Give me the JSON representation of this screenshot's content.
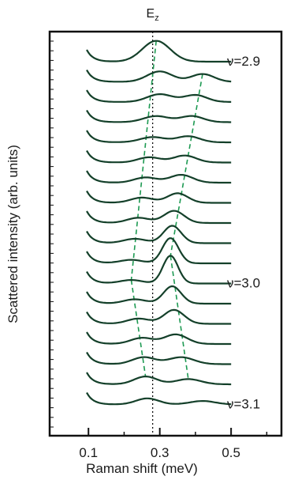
{
  "chart_data": {
    "type": "line",
    "title": "",
    "xlabel": "Raman shift (meV)",
    "ylabel": "Scattered intensity (arb. units)",
    "xlim": [
      0.0,
      0.65
    ],
    "xticks": [
      0.1,
      0.3,
      0.5
    ],
    "xtick_labels": [
      "0.1",
      "0.3",
      "0.5"
    ],
    "grid": false,
    "reference_line": {
      "label": "E",
      "subscript": "z",
      "x": 0.28,
      "style": "dotted"
    },
    "annotations": [
      {
        "text": "ν=2.9",
        "near_trace": 0
      },
      {
        "text": "ν=3.0",
        "near_trace": 11
      },
      {
        "text": "ν=3.1",
        "near_trace": 17
      }
    ],
    "series_color": "#14402a",
    "guide_color": "#1d9a52",
    "traces": [
      {
        "peaks": [
          {
            "x": 0.29,
            "h": 1.2,
            "w": 0.055
          }
        ]
      },
      {
        "peaks": [
          {
            "x": 0.3,
            "h": 0.6,
            "w": 0.05
          },
          {
            "x": 0.42,
            "h": 0.45,
            "w": 0.045
          }
        ]
      },
      {
        "peaks": [
          {
            "x": 0.3,
            "h": 0.45,
            "w": 0.05
          },
          {
            "x": 0.4,
            "h": 0.4,
            "w": 0.045
          }
        ]
      },
      {
        "peaks": [
          {
            "x": 0.29,
            "h": 0.35,
            "w": 0.05
          },
          {
            "x": 0.39,
            "h": 0.35,
            "w": 0.045
          }
        ]
      },
      {
        "peaks": [
          {
            "x": 0.28,
            "h": 0.3,
            "w": 0.05
          },
          {
            "x": 0.38,
            "h": 0.35,
            "w": 0.045
          }
        ]
      },
      {
        "peaks": [
          {
            "x": 0.27,
            "h": 0.3,
            "w": 0.045
          },
          {
            "x": 0.37,
            "h": 0.4,
            "w": 0.045
          }
        ]
      },
      {
        "peaks": [
          {
            "x": 0.26,
            "h": 0.3,
            "w": 0.045
          },
          {
            "x": 0.36,
            "h": 0.45,
            "w": 0.045
          }
        ]
      },
      {
        "peaks": [
          {
            "x": 0.25,
            "h": 0.3,
            "w": 0.045
          },
          {
            "x": 0.35,
            "h": 0.55,
            "w": 0.04
          }
        ]
      },
      {
        "peaks": [
          {
            "x": 0.24,
            "h": 0.3,
            "w": 0.045
          },
          {
            "x": 0.34,
            "h": 0.7,
            "w": 0.04
          }
        ]
      },
      {
        "peaks": [
          {
            "x": 0.23,
            "h": 0.25,
            "w": 0.045
          },
          {
            "x": 0.335,
            "h": 1.0,
            "w": 0.035
          }
        ]
      },
      {
        "peaks": [
          {
            "x": 0.22,
            "h": 0.2,
            "w": 0.045
          },
          {
            "x": 0.33,
            "h": 1.45,
            "w": 0.032
          }
        ]
      },
      {
        "peaks": [
          {
            "x": 0.22,
            "h": 0.2,
            "w": 0.045
          },
          {
            "x": 0.33,
            "h": 1.6,
            "w": 0.03
          }
        ]
      },
      {
        "peaks": [
          {
            "x": 0.23,
            "h": 0.25,
            "w": 0.045
          },
          {
            "x": 0.335,
            "h": 1.0,
            "w": 0.035
          }
        ]
      },
      {
        "peaks": [
          {
            "x": 0.24,
            "h": 0.3,
            "w": 0.045
          },
          {
            "x": 0.34,
            "h": 0.8,
            "w": 0.04
          }
        ]
      },
      {
        "peaks": [
          {
            "x": 0.25,
            "h": 0.35,
            "w": 0.045
          },
          {
            "x": 0.345,
            "h": 0.55,
            "w": 0.045
          }
        ]
      },
      {
        "peaks": [
          {
            "x": 0.255,
            "h": 0.4,
            "w": 0.045
          },
          {
            "x": 0.36,
            "h": 0.4,
            "w": 0.05
          }
        ]
      },
      {
        "peaks": [
          {
            "x": 0.26,
            "h": 0.45,
            "w": 0.045
          },
          {
            "x": 0.38,
            "h": 0.3,
            "w": 0.05
          }
        ]
      },
      {
        "peaks": [
          {
            "x": 0.265,
            "h": 0.35,
            "w": 0.045
          },
          {
            "x": 0.42,
            "h": 0.2,
            "w": 0.05
          }
        ]
      }
    ],
    "guide_lines": [
      {
        "from_trace": 0,
        "to_trace": 11,
        "x_start": 0.29,
        "x_end": 0.22
      },
      {
        "from_trace": 11,
        "to_trace": 16,
        "x_start": 0.22,
        "x_end": 0.26
      },
      {
        "from_trace": 1,
        "to_trace": 11,
        "x_start": 0.42,
        "x_end": 0.33
      },
      {
        "from_trace": 11,
        "to_trace": 16,
        "x_start": 0.33,
        "x_end": 0.38
      }
    ]
  }
}
